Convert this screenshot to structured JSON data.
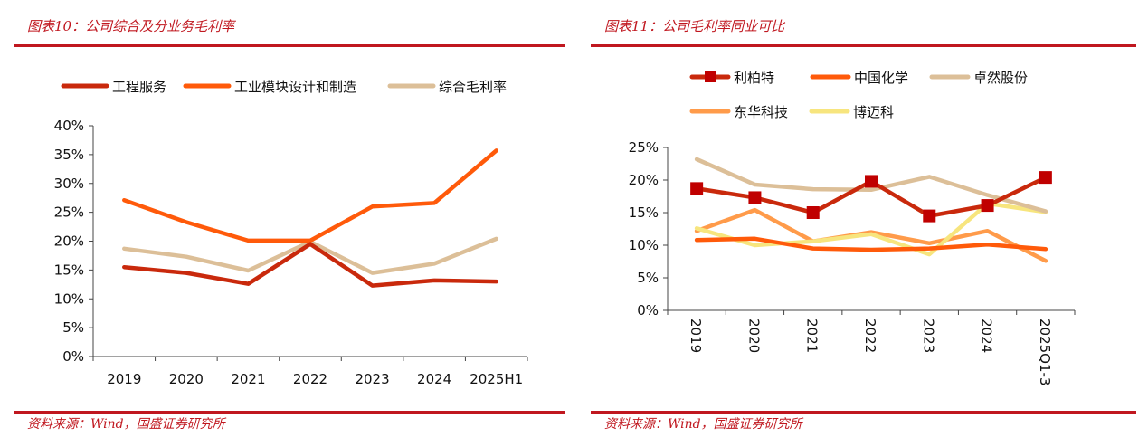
{
  "panels": [
    {
      "title": "图表10：公司综合及分业务毛利率",
      "source": "资料来源：Wind，国盛证券研究所"
    },
    {
      "title": "图表11：公司毛利率同业可比",
      "source": "资料来源：Wind，国盛证券研究所"
    }
  ],
  "chart_data": [
    {
      "type": "line",
      "title": "图表10：公司综合及分业务毛利率",
      "xlabel": "",
      "ylabel": "",
      "categories": [
        "2019",
        "2020",
        "2021",
        "2022",
        "2023",
        "2024",
        "2025H1"
      ],
      "ylim": [
        0,
        40
      ],
      "yticks": [
        0,
        5,
        10,
        15,
        20,
        25,
        30,
        35,
        40
      ],
      "ytick_format": "percent",
      "grid": false,
      "legend_position": "top",
      "series": [
        {
          "name": "工程服务",
          "color": "#c9290c",
          "marker": "none",
          "values": [
            15.5,
            14.5,
            12.6,
            19.5,
            12.3,
            13.2,
            13.0
          ]
        },
        {
          "name": "工业模块设计和制造",
          "color": "#ff5a0a",
          "marker": "none",
          "values": [
            27.1,
            23.3,
            20.1,
            20.1,
            26.0,
            26.6,
            35.7
          ]
        },
        {
          "name": "综合毛利率",
          "color": "#dcbf98",
          "marker": "none",
          "values": [
            18.7,
            17.3,
            14.9,
            19.9,
            14.5,
            16.1,
            20.4
          ]
        }
      ]
    },
    {
      "type": "line",
      "title": "图表11：公司毛利率同业可比",
      "xlabel": "",
      "ylabel": "",
      "categories": [
        "2019",
        "2020",
        "2021",
        "2022",
        "2023",
        "2024",
        "2025Q1-3"
      ],
      "ylim": [
        0,
        25
      ],
      "yticks": [
        0,
        5,
        10,
        15,
        20,
        25
      ],
      "ytick_format": "percent",
      "xtick_rotation": "vertical",
      "grid": false,
      "legend_position": "top",
      "series": [
        {
          "name": "利柏特",
          "color": "#c9290c",
          "marker": "square",
          "marker_color": "#c00000",
          "values": [
            18.7,
            17.3,
            15.0,
            19.8,
            14.5,
            16.1,
            20.4
          ]
        },
        {
          "name": "中国化学",
          "color": "#ff5a0a",
          "marker": "none",
          "values": [
            10.8,
            11.0,
            9.5,
            9.3,
            9.5,
            10.1,
            9.4
          ]
        },
        {
          "name": "卓然股份",
          "color": "#dcbf98",
          "marker": "none",
          "values": [
            23.2,
            19.3,
            18.6,
            18.5,
            20.5,
            17.7,
            15.2
          ]
        },
        {
          "name": "东华科技",
          "color": "#ff9b4a",
          "marker": "none",
          "values": [
            12.2,
            15.4,
            10.6,
            12.0,
            10.3,
            12.2,
            7.6
          ]
        },
        {
          "name": "博迈科",
          "color": "#f7e57e",
          "marker": "none",
          "values": [
            12.6,
            10.0,
            10.6,
            11.7,
            8.6,
            16.4,
            15.1
          ]
        }
      ]
    }
  ]
}
